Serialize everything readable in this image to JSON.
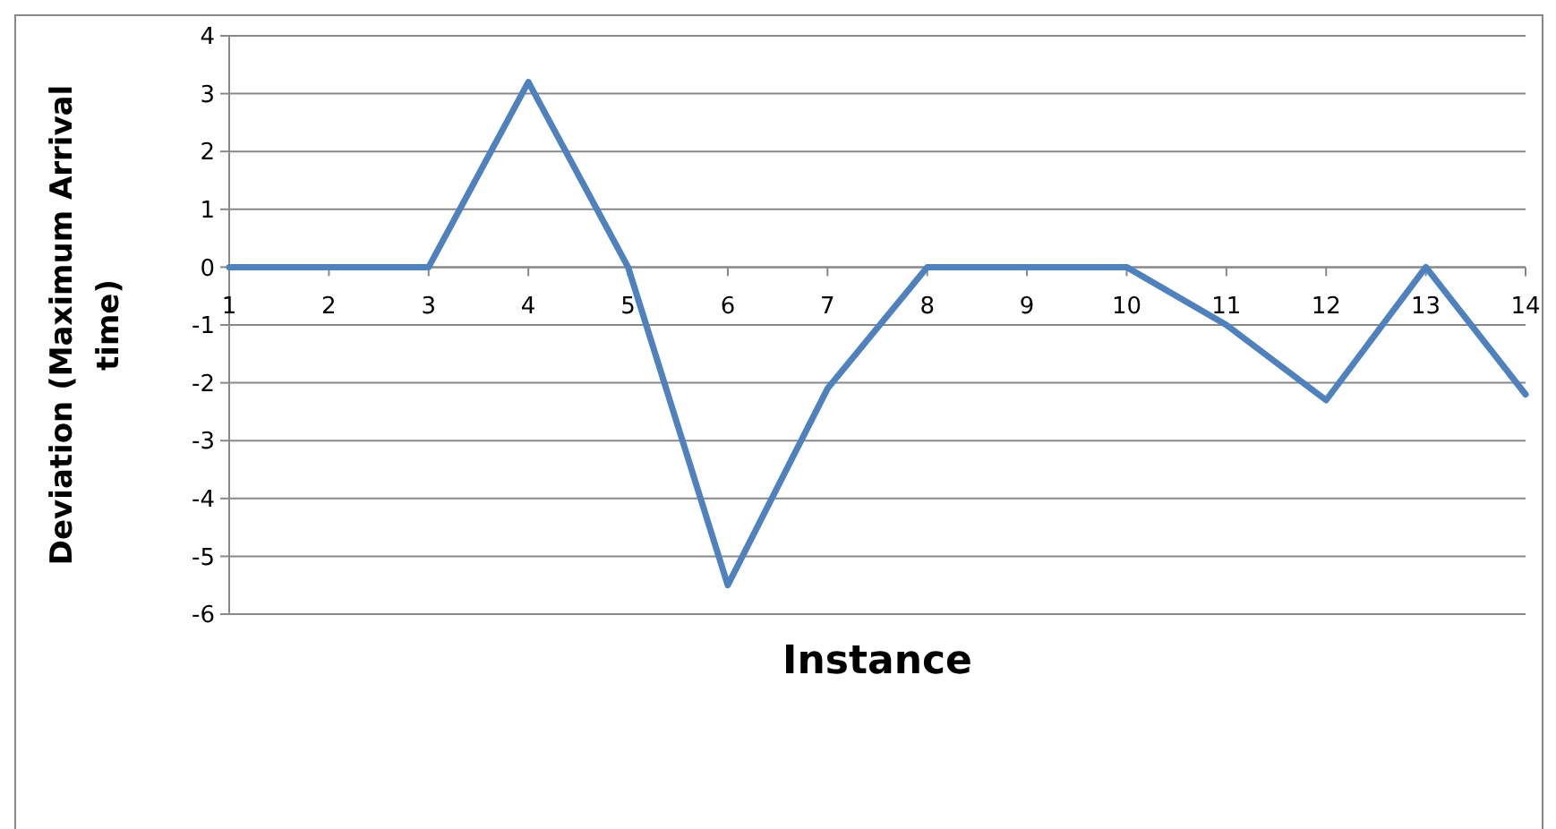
{
  "chart_data": {
    "type": "line",
    "xlabel": "Instance",
    "ylabel": "Deviation (Maximum Arrival time)",
    "x": [
      1,
      2,
      3,
      4,
      5,
      6,
      7,
      8,
      9,
      10,
      11,
      12,
      13,
      14
    ],
    "series": [
      {
        "color": "#4f81bd",
        "values": [
          0,
          0,
          0,
          3.2,
          0,
          -5.5,
          -2.1,
          0,
          0,
          0,
          -1,
          -2.3,
          0,
          -2.2
        ]
      }
    ],
    "xlim": [
      1,
      14
    ],
    "xticks": [
      1,
      2,
      3,
      4,
      5,
      6,
      7,
      8,
      9,
      10,
      11,
      12,
      13,
      14
    ],
    "ylim": [
      -6,
      4
    ],
    "yticks": [
      -6,
      -5,
      -4,
      -3,
      -2,
      -1,
      0,
      1,
      2,
      3,
      4
    ],
    "grid": "y",
    "line_style": "solid"
  }
}
